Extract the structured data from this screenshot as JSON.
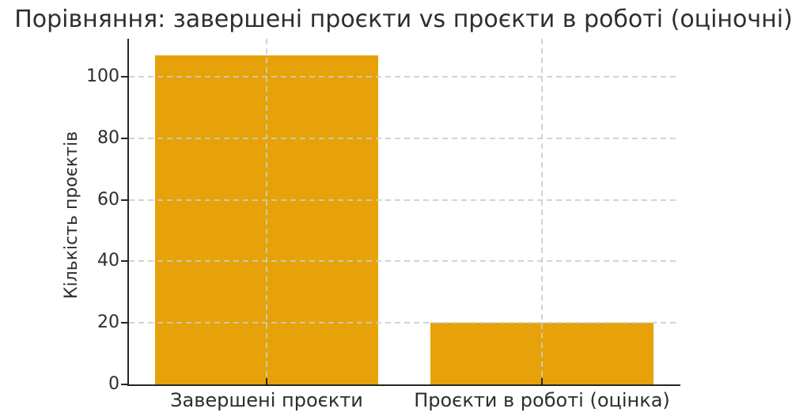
{
  "chart_data": {
    "type": "bar",
    "title": "Порівняння: завершені проєкти vs проєкти в роботі (оціночні)",
    "ylabel": "Кількість проєктів",
    "xlabel": "",
    "categories": [
      "Завершені проєкти",
      "Проєкти в роботі (оцінка)"
    ],
    "values": [
      107,
      20
    ],
    "yticks": [
      0,
      20,
      40,
      60,
      80,
      100
    ],
    "ylim": [
      0,
      112.35
    ],
    "xlim": [
      -0.5,
      1.5
    ],
    "bar_width_units": 0.81,
    "grid": true,
    "grid_style": "dashed",
    "legend": "none",
    "colors": {
      "bar": "#E6A208",
      "grid": "#cccccc",
      "axis": "#262626",
      "text": "#2e2e2e",
      "background": "#ffffff"
    }
  }
}
